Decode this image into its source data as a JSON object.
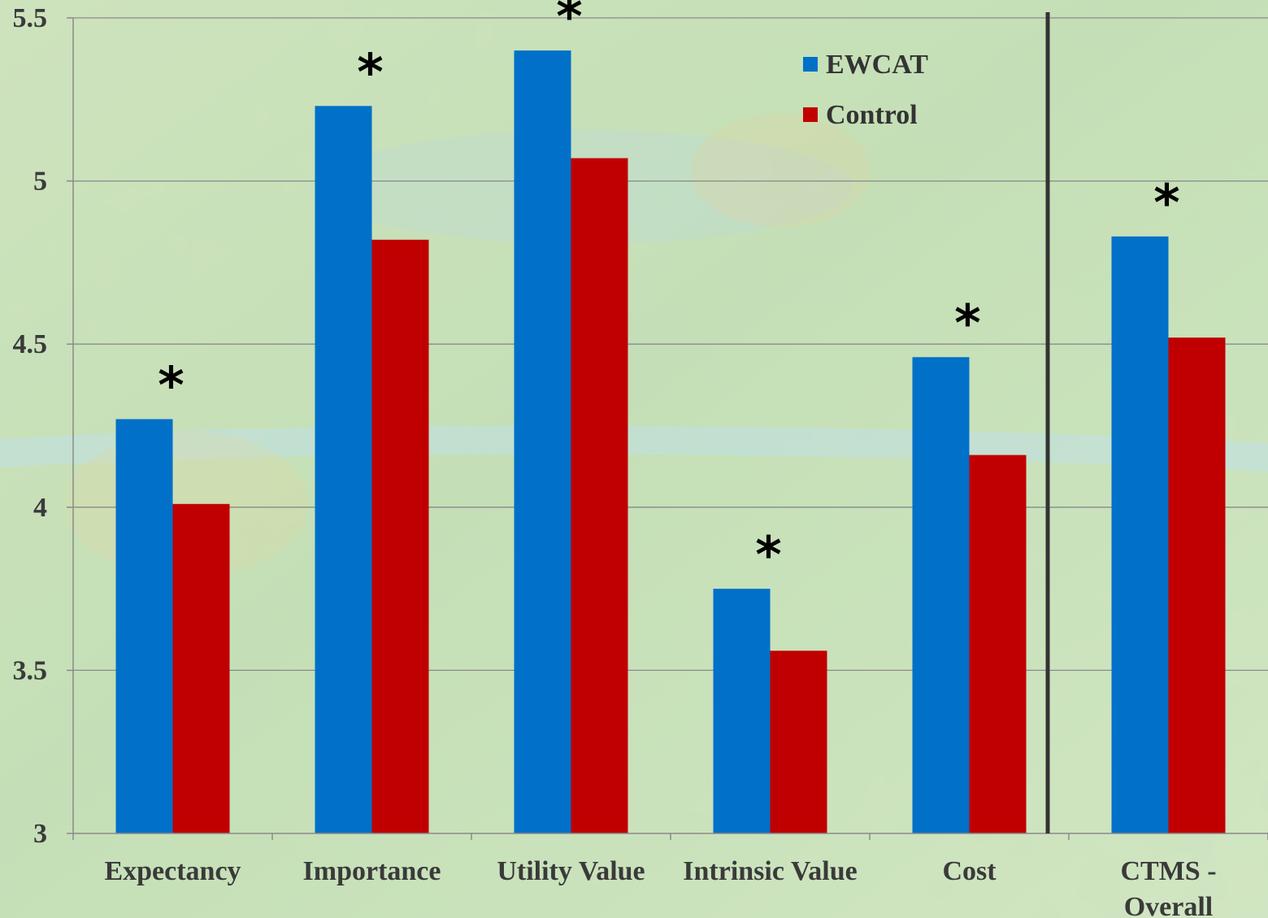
{
  "chart_data": {
    "type": "bar",
    "title": "",
    "xlabel": "",
    "ylabel": "",
    "categories": [
      "Expectancy",
      "Importance",
      "Utility Value",
      "Intrinsic Value",
      "Cost",
      "CTMS - Overall"
    ],
    "series": [
      {
        "name": "EWCAT",
        "color": "#0070c8",
        "values": [
          4.27,
          5.23,
          5.4,
          3.75,
          4.46,
          4.83
        ]
      },
      {
        "name": "Control",
        "color": "#c00000",
        "values": [
          4.01,
          4.82,
          5.07,
          3.56,
          4.16,
          4.52
        ]
      }
    ],
    "significance_marker": "*",
    "significant": [
      true,
      true,
      true,
      true,
      true,
      true
    ],
    "ylim": [
      3,
      5.5
    ],
    "yticks": [
      "3",
      "3.5",
      "4",
      "4.5",
      "5",
      "5.5"
    ],
    "grid": true,
    "legend_position": "top-center",
    "separator_before_category": "CTMS - Overall"
  }
}
